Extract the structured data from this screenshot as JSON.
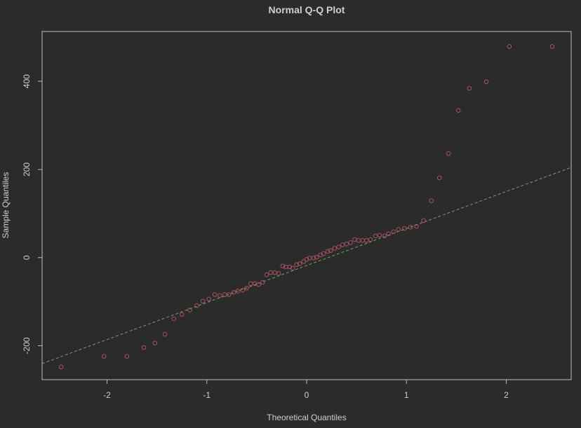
{
  "chart_data": {
    "type": "scatter",
    "title": "Normal Q-Q Plot",
    "xlabel": "Theoretical Quantiles",
    "ylabel": "Sample Quantiles",
    "xlim": [
      -2.65,
      2.65
    ],
    "ylim": [
      -277,
      513
    ],
    "x_ticks": [
      -2,
      -1,
      0,
      1,
      2
    ],
    "x_tick_labels": [
      "-2",
      "-1",
      "0",
      "1",
      "2"
    ],
    "y_ticks": [
      -200,
      0,
      200,
      400
    ],
    "y_tick_labels": [
      "-200",
      "0",
      "200",
      "400"
    ],
    "grid": false,
    "colors": {
      "background": "#2b2b2b",
      "points": "#b5566a",
      "reference_line": "#7aa35a",
      "axes": "#bdbdbd",
      "text": "#cfcfcf"
    },
    "reference_line": {
      "slope": 84,
      "intercept": -18,
      "style": "dashed"
    },
    "series": [
      {
        "x": [
          -2.46,
          -2.03,
          -1.8,
          -1.63,
          -1.52,
          -1.42,
          -1.33,
          -1.25,
          -1.17,
          -1.1,
          -1.04,
          -0.98,
          -0.92,
          -0.87,
          -0.82,
          -0.78,
          -0.73,
          -0.69,
          -0.64,
          -0.6,
          -0.56,
          -0.52,
          -0.48,
          -0.44,
          -0.4,
          -0.36,
          -0.32,
          -0.28,
          -0.24,
          -0.21,
          -0.17,
          -0.14,
          -0.1,
          -0.07,
          -0.03,
          0.0,
          0.03,
          0.07,
          0.1,
          0.14,
          0.17,
          0.21,
          0.24,
          0.28,
          0.32,
          0.36,
          0.4,
          0.44,
          0.48,
          0.52,
          0.56,
          0.6,
          0.64,
          0.69,
          0.73,
          0.78,
          0.82,
          0.87,
          0.92,
          0.98,
          1.04,
          1.1,
          1.17,
          1.25,
          1.33,
          1.42,
          1.52,
          1.63,
          1.8,
          2.03,
          2.46
        ],
        "y": [
          -248,
          -224,
          -224,
          -204,
          -194,
          -174,
          -139,
          -129,
          -119,
          -109,
          -99,
          -94,
          -84,
          -86,
          -84,
          -84,
          -79,
          -76,
          -74,
          -69,
          -59,
          -59,
          -61,
          -56,
          -39,
          -34,
          -34,
          -36,
          -19,
          -21,
          -21,
          -24,
          -16,
          -14,
          -9,
          -4,
          -1,
          -1,
          1,
          6,
          9,
          14,
          16,
          21,
          24,
          29,
          31,
          34,
          41,
          39,
          39,
          39,
          41,
          49,
          51,
          49,
          54,
          59,
          64,
          66,
          69,
          71,
          84,
          129,
          181,
          236,
          334,
          384,
          399,
          479,
          479
        ]
      }
    ]
  }
}
